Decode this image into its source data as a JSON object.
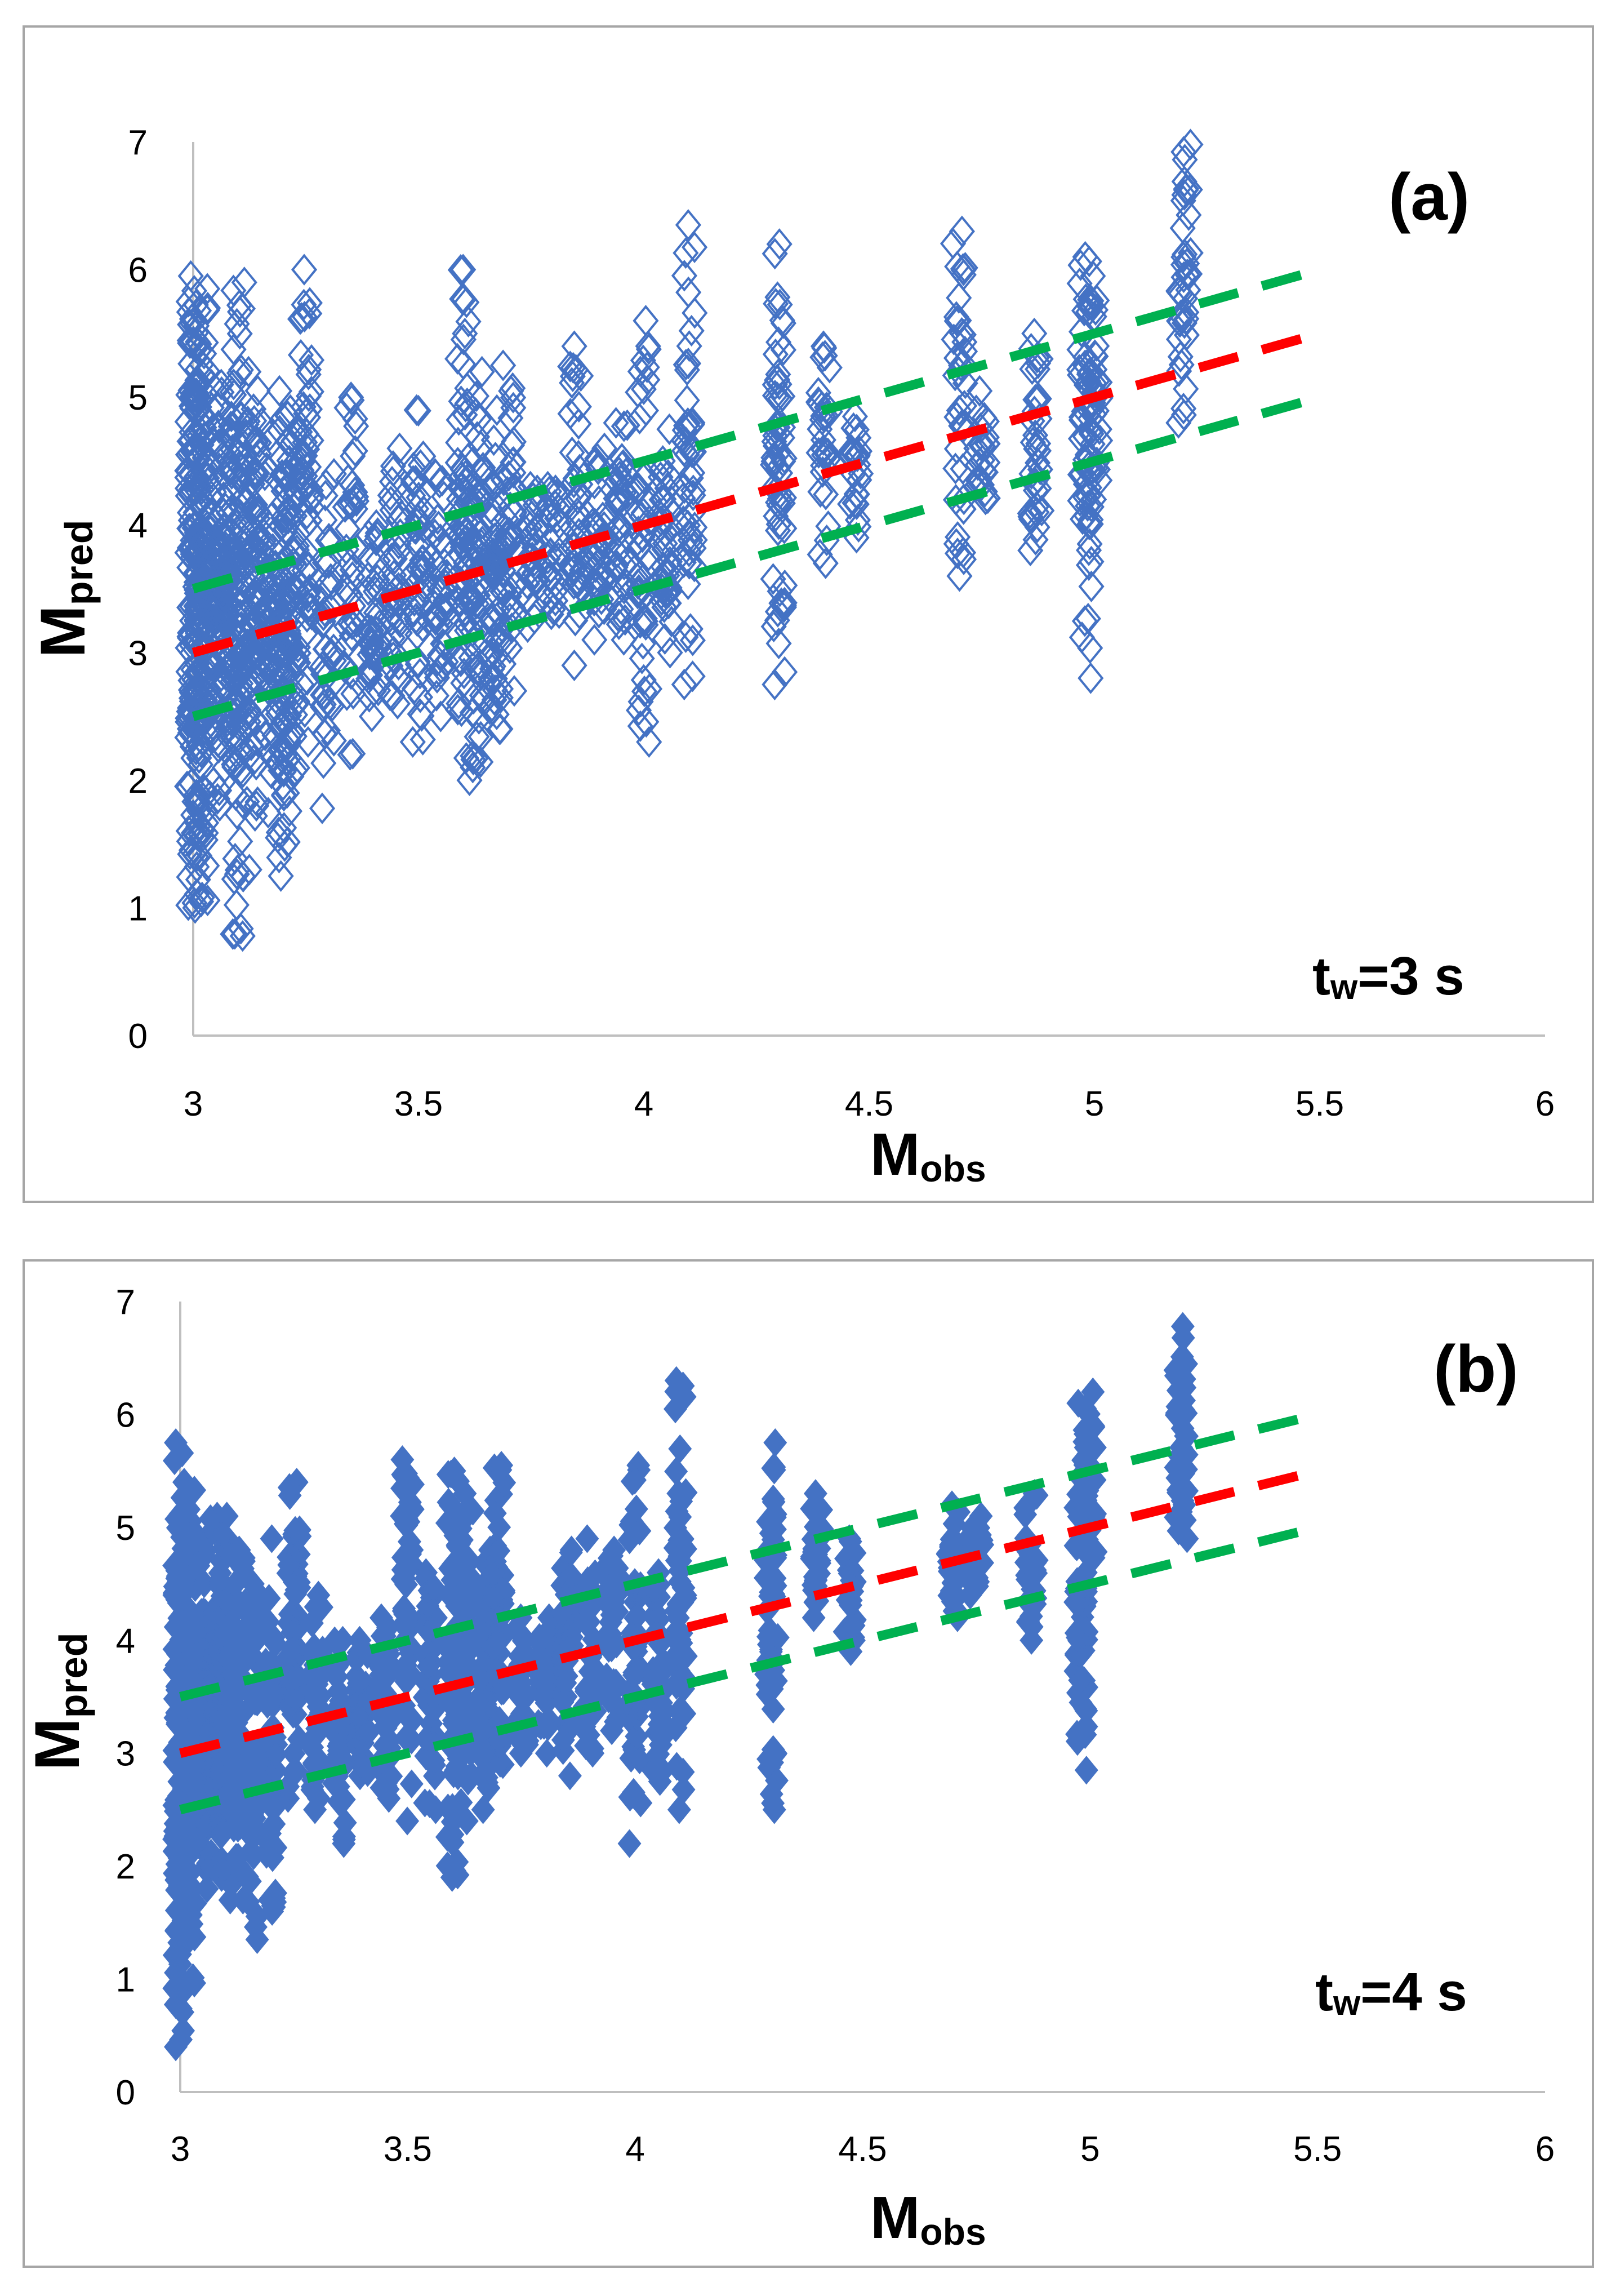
{
  "colors": {
    "marker": "#4472C4",
    "fit_line": "#FF0000",
    "bound_line": "#00B050",
    "axis": "#bfbfbf",
    "frame": "#a6a6a6"
  },
  "chart_data": [
    {
      "type": "scatter",
      "panel_label": "(a)",
      "annotation": {
        "prefix": "t",
        "subscript": "w",
        "suffix": "=3 s"
      },
      "xlabel": {
        "main": "M",
        "sub": "obs"
      },
      "ylabel": {
        "main": "M",
        "sub": "pred"
      },
      "xlim": [
        3,
        6
      ],
      "ylim": [
        0,
        7
      ],
      "x_ticks": [
        "3",
        "3.5",
        "4",
        "4.5",
        "5",
        "5.5",
        "6"
      ],
      "y_ticks": [
        "0",
        "1",
        "2",
        "3",
        "4",
        "5",
        "6",
        "7"
      ],
      "marker": "diamond-open",
      "lines": [
        {
          "name": "fit",
          "style": "red-dashed",
          "x": [
            3,
            5.5
          ],
          "y": [
            3,
            5.5
          ]
        },
        {
          "name": "upper",
          "style": "green-dashed",
          "x": [
            3,
            5.5
          ],
          "y": [
            3.5,
            6
          ]
        },
        {
          "name": "lower",
          "style": "green-dashed",
          "x": [
            3,
            5.5
          ],
          "y": [
            2.5,
            5
          ]
        }
      ],
      "clusters": [
        {
          "x": 3.0,
          "ymin": 1.0,
          "ymax": 5.95,
          "n": 160
        },
        {
          "x": 3.02,
          "ymin": 1.05,
          "ymax": 5.85,
          "n": 120
        },
        {
          "x": 3.05,
          "ymin": 1.8,
          "ymax": 5.1,
          "n": 80
        },
        {
          "x": 3.08,
          "ymin": 2.1,
          "ymax": 4.85,
          "n": 90
        },
        {
          "x": 3.1,
          "ymin": 0.78,
          "ymax": 5.9,
          "n": 90
        },
        {
          "x": 3.13,
          "ymin": 1.3,
          "ymax": 5.2,
          "n": 60
        },
        {
          "x": 3.15,
          "ymin": 1.8,
          "ymax": 4.8,
          "n": 50
        },
        {
          "x": 3.18,
          "ymin": 1.55,
          "ymax": 4.7,
          "n": 40
        },
        {
          "x": 3.2,
          "ymin": 1.25,
          "ymax": 5.05,
          "n": 70
        },
        {
          "x": 3.22,
          "ymin": 1.9,
          "ymax": 4.9,
          "n": 60
        },
        {
          "x": 3.25,
          "ymin": 2.3,
          "ymax": 6.0,
          "n": 60
        },
        {
          "x": 3.3,
          "ymin": 1.78,
          "ymax": 4.4,
          "n": 40
        },
        {
          "x": 3.35,
          "ymin": 2.2,
          "ymax": 5.0,
          "n": 40
        },
        {
          "x": 3.4,
          "ymin": 2.5,
          "ymax": 4.0,
          "n": 40
        },
        {
          "x": 3.45,
          "ymin": 2.6,
          "ymax": 4.6,
          "n": 40
        },
        {
          "x": 3.5,
          "ymin": 2.3,
          "ymax": 4.9,
          "n": 50
        },
        {
          "x": 3.55,
          "ymin": 2.5,
          "ymax": 4.4,
          "n": 40
        },
        {
          "x": 3.6,
          "ymin": 2.0,
          "ymax": 6.0,
          "n": 70
        },
        {
          "x": 3.63,
          "ymin": 2.1,
          "ymax": 5.2,
          "n": 60
        },
        {
          "x": 3.67,
          "ymin": 2.4,
          "ymax": 4.9,
          "n": 50
        },
        {
          "x": 3.7,
          "ymin": 2.7,
          "ymax": 5.25,
          "n": 50
        },
        {
          "x": 3.75,
          "ymin": 3.2,
          "ymax": 4.3,
          "n": 30
        },
        {
          "x": 3.8,
          "ymin": 3.3,
          "ymax": 4.3,
          "n": 30
        },
        {
          "x": 3.85,
          "ymin": 2.9,
          "ymax": 5.4,
          "n": 40
        },
        {
          "x": 3.9,
          "ymin": 3.1,
          "ymax": 4.6,
          "n": 35
        },
        {
          "x": 3.95,
          "ymin": 3.1,
          "ymax": 4.8,
          "n": 40
        },
        {
          "x": 4.0,
          "ymin": 2.3,
          "ymax": 5.6,
          "n": 50
        },
        {
          "x": 4.05,
          "ymin": 3.0,
          "ymax": 4.75,
          "n": 40
        },
        {
          "x": 4.1,
          "ymin": 2.75,
          "ymax": 6.35,
          "n": 50
        },
        {
          "x": 4.3,
          "ymin": 2.75,
          "ymax": 6.2,
          "n": 60
        },
        {
          "x": 4.4,
          "ymin": 3.7,
          "ymax": 5.4,
          "n": 30
        },
        {
          "x": 4.47,
          "ymin": 3.9,
          "ymax": 4.85,
          "n": 25
        },
        {
          "x": 4.7,
          "ymin": 3.6,
          "ymax": 6.3,
          "n": 40
        },
        {
          "x": 4.75,
          "ymin": 4.2,
          "ymax": 5.05,
          "n": 25
        },
        {
          "x": 4.87,
          "ymin": 3.8,
          "ymax": 5.5,
          "n": 35
        },
        {
          "x": 4.98,
          "ymin": 2.8,
          "ymax": 6.1,
          "n": 50
        },
        {
          "x": 5.0,
          "ymin": 4.2,
          "ymax": 5.95,
          "n": 40
        },
        {
          "x": 5.2,
          "ymin": 4.8,
          "ymax": 6.98,
          "n": 40
        }
      ]
    },
    {
      "type": "scatter",
      "panel_label": "(b)",
      "annotation": {
        "prefix": "t",
        "subscript": "w",
        "suffix": "=4 s"
      },
      "xlabel": {
        "main": "M",
        "sub": "obs"
      },
      "ylabel": {
        "main": "M",
        "sub": "pred"
      },
      "xlim": [
        3,
        6
      ],
      "ylim": [
        0,
        7
      ],
      "x_ticks": [
        "3",
        "3.5",
        "4",
        "4.5",
        "5",
        "5.5",
        "6"
      ],
      "y_ticks": [
        "0",
        "1",
        "2",
        "3",
        "4",
        "5",
        "6",
        "7"
      ],
      "marker": "diamond-filled",
      "lines": [
        {
          "name": "fit",
          "style": "red-dashed",
          "x": [
            3,
            5.5
          ],
          "y": [
            3,
            5.5
          ]
        },
        {
          "name": "upper",
          "style": "green-dashed",
          "x": [
            3,
            5.5
          ],
          "y": [
            3.5,
            6
          ]
        },
        {
          "name": "lower",
          "style": "green-dashed",
          "x": [
            3,
            5.5
          ],
          "y": [
            2.5,
            5
          ]
        }
      ],
      "clusters": [
        {
          "x": 3.0,
          "ymin": 0.4,
          "ymax": 5.75,
          "n": 150
        },
        {
          "x": 3.02,
          "ymin": 0.9,
          "ymax": 5.4,
          "n": 110
        },
        {
          "x": 3.05,
          "ymin": 1.8,
          "ymax": 4.9,
          "n": 80
        },
        {
          "x": 3.08,
          "ymin": 1.9,
          "ymax": 5.1,
          "n": 80
        },
        {
          "x": 3.1,
          "ymin": 1.7,
          "ymax": 5.1,
          "n": 80
        },
        {
          "x": 3.13,
          "ymin": 1.7,
          "ymax": 4.8,
          "n": 60
        },
        {
          "x": 3.16,
          "ymin": 1.35,
          "ymax": 4.5,
          "n": 50
        },
        {
          "x": 3.2,
          "ymin": 1.6,
          "ymax": 4.9,
          "n": 60
        },
        {
          "x": 3.25,
          "ymin": 2.6,
          "ymax": 5.4,
          "n": 60
        },
        {
          "x": 3.3,
          "ymin": 2.5,
          "ymax": 4.4,
          "n": 40
        },
        {
          "x": 3.35,
          "ymin": 2.2,
          "ymax": 4.0,
          "n": 40
        },
        {
          "x": 3.4,
          "ymin": 2.8,
          "ymax": 4.0,
          "n": 40
        },
        {
          "x": 3.45,
          "ymin": 2.6,
          "ymax": 4.2,
          "n": 40
        },
        {
          "x": 3.5,
          "ymin": 2.4,
          "ymax": 5.6,
          "n": 50
        },
        {
          "x": 3.55,
          "ymin": 2.5,
          "ymax": 4.6,
          "n": 40
        },
        {
          "x": 3.6,
          "ymin": 1.9,
          "ymax": 5.5,
          "n": 70
        },
        {
          "x": 3.63,
          "ymin": 2.4,
          "ymax": 5.3,
          "n": 60
        },
        {
          "x": 3.67,
          "ymin": 2.5,
          "ymax": 4.8,
          "n": 50
        },
        {
          "x": 3.7,
          "ymin": 2.9,
          "ymax": 5.55,
          "n": 50
        },
        {
          "x": 3.75,
          "ymin": 3.0,
          "ymax": 4.2,
          "n": 30
        },
        {
          "x": 3.8,
          "ymin": 3.0,
          "ymax": 4.2,
          "n": 30
        },
        {
          "x": 3.85,
          "ymin": 2.8,
          "ymax": 4.8,
          "n": 40
        },
        {
          "x": 3.9,
          "ymin": 3.0,
          "ymax": 4.9,
          "n": 35
        },
        {
          "x": 3.95,
          "ymin": 3.2,
          "ymax": 4.8,
          "n": 40
        },
        {
          "x": 4.0,
          "ymin": 2.2,
          "ymax": 5.55,
          "n": 50
        },
        {
          "x": 4.05,
          "ymin": 2.75,
          "ymax": 4.6,
          "n": 40
        },
        {
          "x": 4.1,
          "ymin": 2.5,
          "ymax": 6.3,
          "n": 50
        },
        {
          "x": 4.3,
          "ymin": 2.5,
          "ymax": 5.75,
          "n": 60
        },
        {
          "x": 4.4,
          "ymin": 4.2,
          "ymax": 5.3,
          "n": 30
        },
        {
          "x": 4.47,
          "ymin": 3.9,
          "ymax": 4.9,
          "n": 25
        },
        {
          "x": 4.7,
          "ymin": 4.2,
          "ymax": 5.2,
          "n": 35
        },
        {
          "x": 4.75,
          "ymin": 4.4,
          "ymax": 5.1,
          "n": 25
        },
        {
          "x": 4.87,
          "ymin": 4.0,
          "ymax": 5.3,
          "n": 35
        },
        {
          "x": 4.98,
          "ymin": 2.85,
          "ymax": 6.1,
          "n": 50
        },
        {
          "x": 5.0,
          "ymin": 4.6,
          "ymax": 6.2,
          "n": 40
        },
        {
          "x": 5.2,
          "ymin": 4.9,
          "ymax": 6.78,
          "n": 40
        }
      ]
    }
  ]
}
